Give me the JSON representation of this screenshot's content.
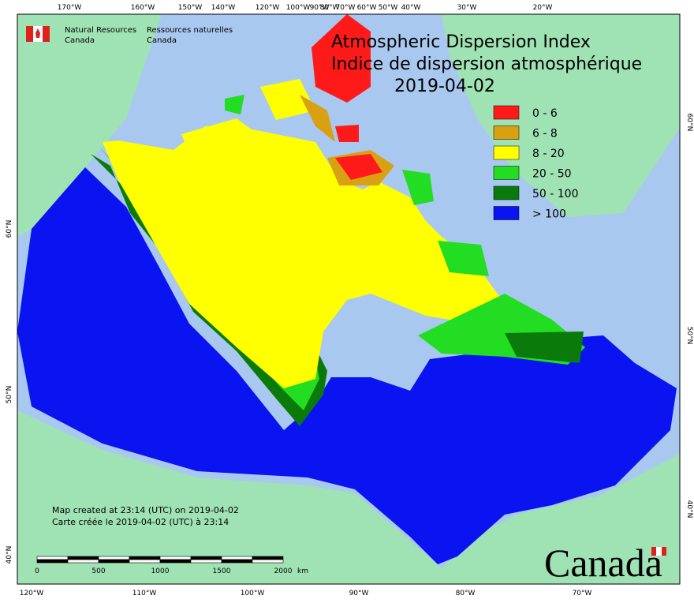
{
  "header": {
    "org_en": [
      "Natural Resources",
      "Canada"
    ],
    "org_fr": [
      "Ressources naturelles",
      "Canada"
    ]
  },
  "title": [
    "Atmospheric Dispersion Index",
    "Indice de dispersion atmosphérique"
  ],
  "date": "2019-04-02",
  "legend": [
    {
      "label": "0 - 6",
      "color": "#ff1a1a"
    },
    {
      "label": "6 - 8",
      "color": "#d9a011"
    },
    {
      "label": "8 - 20",
      "color": "#ffff00"
    },
    {
      "label": "20 - 50",
      "color": "#22dd22"
    },
    {
      "label": "50 - 100",
      "color": "#0a7a0a"
    },
    {
      "label": "> 100",
      "color": "#0a14f0"
    }
  ],
  "top_labels": [
    "170°W",
    "160°W",
    "150°W",
    "140°W",
    "120°W",
    "100°W",
    "90°W",
    "80°W",
    "70°W",
    "60°W",
    "50°W",
    "40°W",
    "30°W",
    "20°W"
  ],
  "bottom_labels": [
    "120°W",
    "110°W",
    "100°W",
    "90°W",
    "80°W",
    "70°W"
  ],
  "left_labels": [
    "60°N",
    "50°N",
    "40°N"
  ],
  "right_labels": [
    "60°N",
    "50°N",
    "40°N"
  ],
  "notes": [
    "Map created at 23:14 (UTC) on 2019-04-02",
    "Carte créée le 2019-04-02 (UTC) à 23:14"
  ],
  "scale": {
    "labels": [
      "0",
      "500",
      "1000",
      "1500",
      "2000"
    ],
    "unit": "km"
  },
  "wordmark": "Canada"
}
